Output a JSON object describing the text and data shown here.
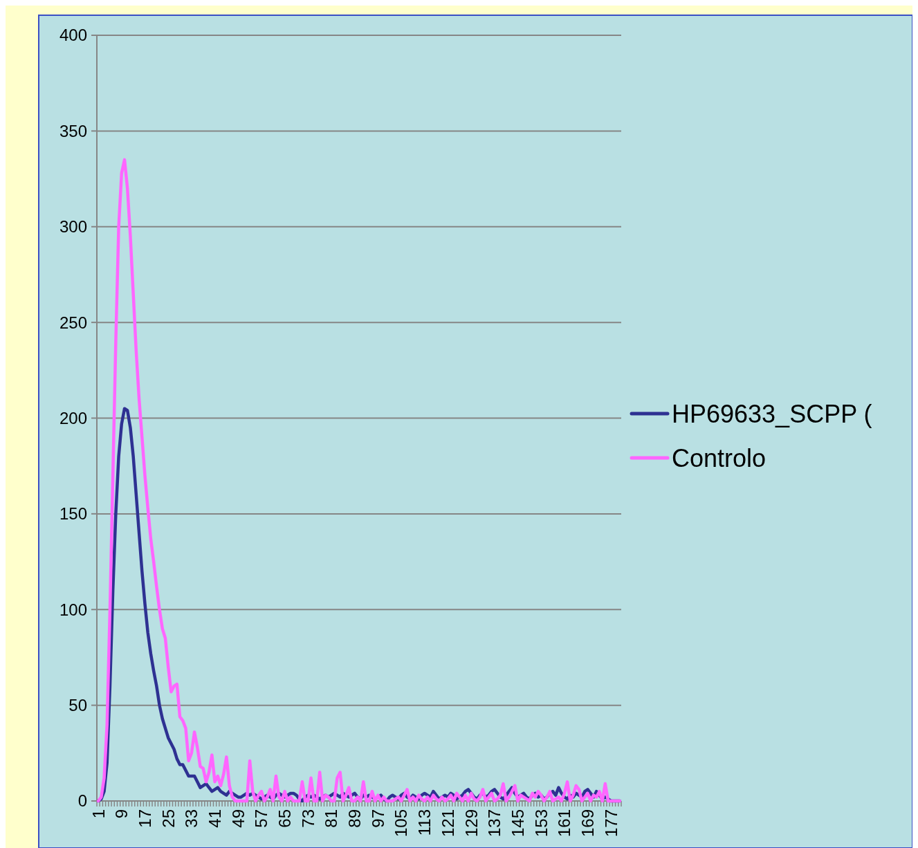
{
  "chart_data": {
    "type": "line",
    "categories": [
      "1",
      null,
      null,
      null,
      null,
      null,
      null,
      null,
      "9",
      null,
      null,
      null,
      null,
      null,
      null,
      null,
      "17",
      null,
      null,
      null,
      null,
      null,
      null,
      null,
      "25",
      null,
      null,
      null,
      null,
      null,
      null,
      null,
      "33",
      null,
      null,
      null,
      null,
      null,
      null,
      null,
      "41",
      null,
      null,
      null,
      null,
      null,
      null,
      null,
      "49",
      null,
      null,
      null,
      null,
      null,
      null,
      null,
      "57",
      null,
      null,
      null,
      null,
      null,
      null,
      null,
      "65",
      null,
      null,
      null,
      null,
      null,
      null,
      null,
      "73",
      null,
      null,
      null,
      null,
      null,
      null,
      null,
      "81",
      null,
      null,
      null,
      null,
      null,
      null,
      null,
      "89",
      null,
      null,
      null,
      null,
      null,
      null,
      null,
      "97",
      null,
      null,
      null,
      null,
      null,
      null,
      null,
      "105",
      null,
      null,
      null,
      null,
      null,
      null,
      null,
      "113",
      null,
      null,
      null,
      null,
      null,
      null,
      null,
      "121",
      null,
      null,
      null,
      null,
      null,
      null,
      null,
      "129",
      null,
      null,
      null,
      null,
      null,
      null,
      null,
      "137",
      null,
      null,
      null,
      null,
      null,
      null,
      null,
      "145",
      null,
      null,
      null,
      null,
      null,
      null,
      null,
      "153",
      null,
      null,
      null,
      null,
      null,
      null,
      null,
      "161",
      null,
      null,
      null,
      null,
      null,
      null,
      null,
      "169",
      null,
      null,
      null,
      null,
      null,
      null,
      null,
      "177",
      null,
      null,
      null
    ],
    "series": [
      {
        "name": "HP69633_SCPP (",
        "color": "#2e3192",
        "values": [
          0,
          1,
          5,
          20,
          60,
          110,
          150,
          180,
          197,
          205,
          204,
          195,
          180,
          160,
          140,
          120,
          103,
          88,
          77,
          68,
          60,
          50,
          43,
          38,
          33,
          30,
          27,
          22,
          19,
          19,
          16,
          13,
          13,
          13,
          10,
          7,
          8,
          9,
          7,
          5,
          6,
          7,
          5,
          4,
          3,
          5,
          4,
          3,
          2,
          2,
          3,
          4,
          3,
          4,
          3,
          2,
          1,
          2,
          3,
          2,
          1,
          3,
          4,
          3,
          2,
          3,
          4,
          4,
          3,
          1,
          0,
          2,
          3,
          2,
          3,
          2,
          1,
          2,
          3,
          2,
          3,
          4,
          3,
          2,
          4,
          3,
          2,
          3,
          4,
          2,
          1,
          3,
          2,
          3,
          2,
          1,
          2,
          3,
          1,
          0,
          2,
          3,
          2,
          1,
          3,
          4,
          2,
          1,
          3,
          2,
          1,
          3,
          4,
          3,
          2,
          5,
          3,
          1,
          2,
          3,
          2,
          4,
          3,
          1,
          2,
          3,
          5,
          6,
          4,
          2,
          1,
          3,
          4,
          2,
          3,
          5,
          6,
          4,
          2,
          1,
          3,
          5,
          7,
          4,
          2,
          3,
          4,
          2,
          1,
          3,
          4,
          2,
          3,
          1,
          2,
          4,
          5,
          3,
          7,
          4,
          2,
          1,
          3,
          2,
          4,
          3,
          2,
          5,
          6,
          4,
          2,
          5,
          3,
          1,
          2,
          1,
          0,
          0,
          0,
          0
        ]
      },
      {
        "name": "Controlo",
        "color": "#ff66ff",
        "values": [
          0,
          2,
          12,
          40,
          100,
          170,
          240,
          300,
          328,
          335,
          320,
          295,
          265,
          235,
          210,
          190,
          170,
          153,
          137,
          125,
          112,
          100,
          90,
          85,
          70,
          57,
          60,
          61,
          44,
          42,
          38,
          21,
          25,
          36,
          28,
          18,
          17,
          10,
          15,
          24,
          10,
          13,
          8,
          14,
          23,
          8,
          2,
          0,
          0,
          0,
          0,
          0,
          21,
          5,
          0,
          3,
          5,
          0,
          2,
          6,
          0,
          13,
          2,
          0,
          5,
          0,
          2,
          0,
          0,
          0,
          10,
          0,
          0,
          12,
          0,
          0,
          15,
          0,
          3,
          2,
          0,
          0,
          12,
          15,
          0,
          3,
          7,
          0,
          0,
          2,
          0,
          10,
          0,
          0,
          5,
          0,
          3,
          0,
          2,
          0,
          0,
          0,
          1,
          2,
          0,
          3,
          6,
          0,
          2,
          0,
          3,
          1,
          0,
          2,
          0,
          3,
          1,
          0,
          2,
          0,
          1,
          3,
          0,
          4,
          2,
          0,
          3,
          0,
          4,
          1,
          0,
          2,
          6,
          0,
          2,
          4,
          0,
          1,
          3,
          9,
          0,
          2,
          5,
          8,
          0,
          3,
          2,
          1,
          0,
          4,
          2,
          5,
          3,
          0,
          2,
          5,
          0,
          1,
          2,
          0,
          4,
          10,
          0,
          3,
          8,
          6,
          0,
          2,
          4,
          0,
          3,
          2,
          5,
          0,
          9,
          0,
          0,
          0,
          0,
          0
        ]
      }
    ],
    "ylim": [
      0,
      400
    ],
    "yticks": [
      0,
      50,
      100,
      150,
      200,
      250,
      300,
      350,
      400
    ],
    "grid": "y",
    "legend": "right",
    "marker": "none",
    "line_style": "solid"
  }
}
